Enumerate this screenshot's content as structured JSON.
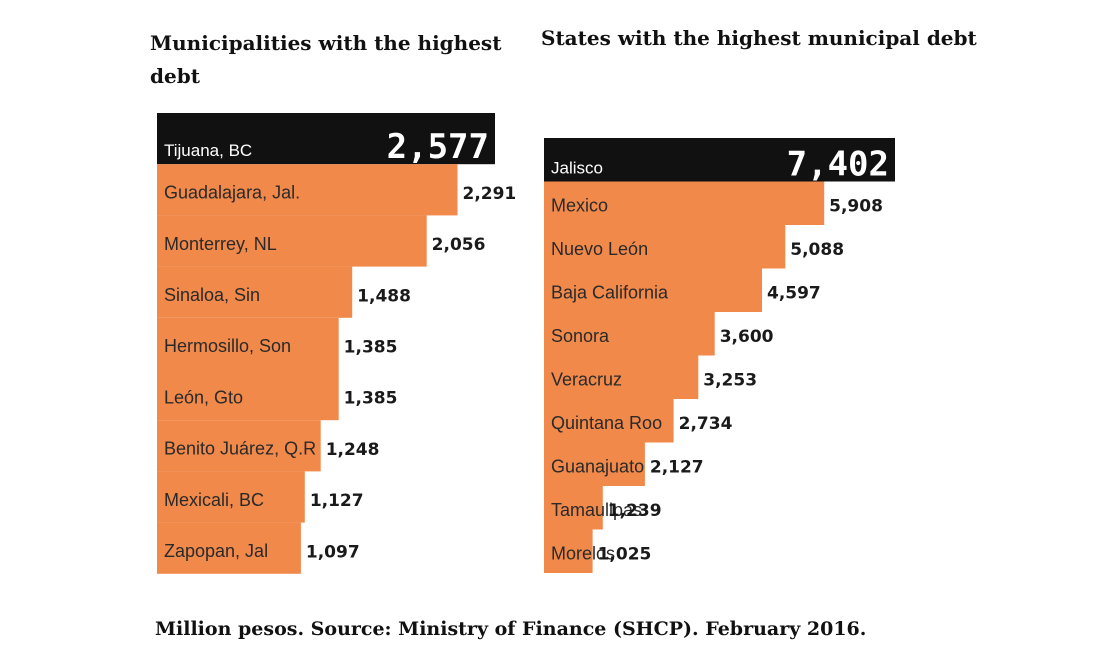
{
  "chart_data": [
    {
      "type": "bar",
      "orientation": "horizontal",
      "title": "Municipalities with the highest debt",
      "categories": [
        "Tijuana, BC",
        "Guadalajara, Jal.",
        "Monterrey, NL",
        "Sinaloa, Sin",
        "Hermosillo, Son",
        "León, Gto",
        "Benito Juárez, Q.R",
        "Mexicali, BC",
        "Zapopan, Jal"
      ],
      "values": [
        2577,
        2291,
        2056,
        1488,
        1385,
        1385,
        1248,
        1127,
        1097
      ],
      "value_labels": [
        "2,577",
        "2,291",
        "2,056",
        "1,488",
        "1,385",
        "1,385",
        "1,248",
        "1,127",
        "1,097"
      ],
      "highlight_color": "#111111",
      "bar_color": "#f0894a"
    },
    {
      "type": "bar",
      "orientation": "horizontal",
      "title": "States with the highest municipal debt",
      "categories": [
        "Jalisco",
        "Mexico",
        "Nuevo León",
        "Baja California",
        "Sonora",
        "Veracruz",
        "Quintana Roo",
        "Guanajuato",
        "Tamaulipas",
        "Morelos"
      ],
      "values": [
        7402,
        5908,
        5088,
        4597,
        3600,
        3253,
        2734,
        2127,
        1239,
        1025
      ],
      "value_labels": [
        "7,402",
        "5,908",
        "5,088",
        "4,597",
        "3,600",
        "3,253",
        "2,734",
        "2,127",
        "1,239",
        "1,025"
      ],
      "highlight_color": "#111111",
      "bar_color": "#f0894a"
    }
  ],
  "footer": {
    "source": "Million pesos. Source: Ministry of Finance (SHCP). February 2016."
  }
}
